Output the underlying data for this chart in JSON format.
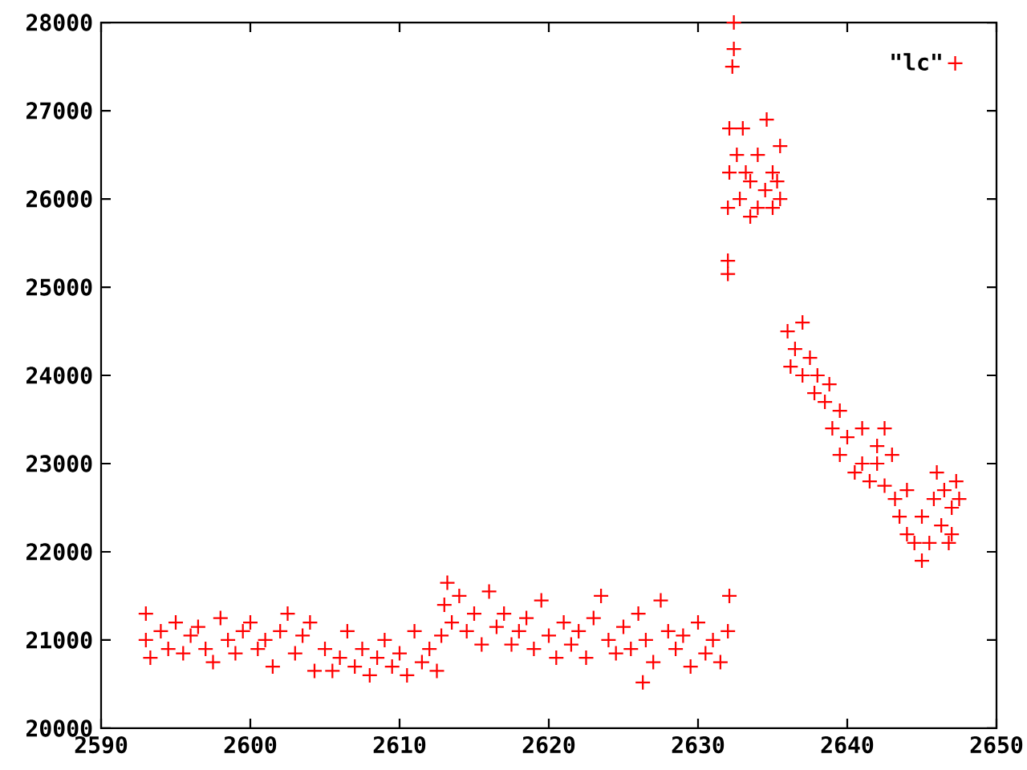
{
  "chart_data": {
    "type": "scatter",
    "xlim": [
      2590,
      2650
    ],
    "ylim": [
      20000,
      28000
    ],
    "xticks": [
      2590,
      2600,
      2610,
      2620,
      2630,
      2640,
      2650
    ],
    "yticks": [
      20000,
      21000,
      22000,
      23000,
      24000,
      25000,
      26000,
      27000,
      28000
    ],
    "marker": "cross",
    "legend": "top right",
    "grid": false,
    "series": [
      {
        "name": "\"lc\"",
        "color": "#ff0000",
        "x": [
          2593.0,
          2593.0,
          2593.3,
          2594,
          2594.5,
          2595,
          2595.5,
          2596,
          2596.5,
          2597,
          2597.5,
          2598,
          2598.5,
          2599,
          2599.5,
          2600,
          2600.5,
          2601,
          2601.5,
          2602,
          2602.5,
          2603,
          2603.5,
          2604,
          2604.3,
          2605,
          2605.5,
          2606,
          2606.5,
          2607,
          2607.5,
          2608,
          2608.5,
          2609,
          2609.5,
          2610,
          2610.5,
          2611,
          2611.5,
          2612,
          2612.5,
          2612.8,
          2613.0,
          2613.2,
          2613.5,
          2614,
          2614.5,
          2615,
          2615.5,
          2616,
          2616.5,
          2617,
          2617.5,
          2618,
          2618.5,
          2619,
          2619.5,
          2620,
          2620.5,
          2621,
          2621.5,
          2622,
          2622.5,
          2623,
          2623.5,
          2624,
          2624.5,
          2625,
          2625.5,
          2626,
          2626.3,
          2626.5,
          2627,
          2627.5,
          2628,
          2628.5,
          2629,
          2629.5,
          2630,
          2630.5,
          2631,
          2631.5,
          2632,
          2632.1,
          2632,
          2632,
          2632,
          2632.1,
          2632.1,
          2632.3,
          2632.4,
          2632.4,
          2632.6,
          2632.8,
          2633,
          2633.2,
          2633.5,
          2633.5,
          2634,
          2634,
          2634.5,
          2634.6,
          2635,
          2635,
          2635.3,
          2635.5,
          2635.5,
          2636,
          2636.2,
          2636.5,
          2637,
          2637,
          2637.5,
          2637.8,
          2638,
          2638.5,
          2638.8,
          2639,
          2639.5,
          2639.5,
          2640,
          2640.5,
          2641,
          2641,
          2641.5,
          2642,
          2642,
          2642.5,
          2642.5,
          2643,
          2643.2,
          2643.5,
          2644,
          2644,
          2644.5,
          2645,
          2645,
          2645.5,
          2645.8,
          2646,
          2646.3,
          2646.5,
          2647,
          2647,
          2647.3,
          2647.5,
          2646.8
        ],
        "values": [
          21000,
          21300,
          20800,
          21100,
          20900,
          21200,
          20850,
          21050,
          21150,
          20900,
          20750,
          21250,
          21000,
          20850,
          21100,
          21200,
          20900,
          21000,
          20700,
          21100,
          21300,
          20850,
          21050,
          21200,
          20650,
          20900,
          20650,
          20800,
          21100,
          20700,
          20900,
          20600,
          20800,
          21000,
          20700,
          20850,
          20600,
          21100,
          20750,
          20900,
          20650,
          21050,
          21400,
          21650,
          21200,
          21500,
          21100,
          21300,
          20950,
          21550,
          21150,
          21300,
          20950,
          21100,
          21250,
          20900,
          21450,
          21050,
          20800,
          21200,
          20950,
          21100,
          20800,
          21250,
          21500,
          21000,
          20850,
          21150,
          20900,
          21300,
          20520,
          21000,
          20750,
          21450,
          21100,
          20900,
          21050,
          20700,
          21200,
          20850,
          21000,
          20750,
          21100,
          21500,
          25150,
          25300,
          25900,
          26300,
          26800,
          27500,
          27700,
          28000,
          26500,
          26000,
          26800,
          26300,
          25800,
          26200,
          26500,
          25900,
          26100,
          26900,
          26300,
          25900,
          26200,
          26600,
          26000,
          24500,
          24100,
          24300,
          24600,
          24000,
          24200,
          23800,
          24000,
          23700,
          23900,
          23400,
          23600,
          23100,
          23300,
          22900,
          23400,
          23000,
          22800,
          23200,
          23000,
          23400,
          22750,
          23100,
          22600,
          22400,
          22200,
          22700,
          22100,
          21900,
          22400,
          22100,
          22600,
          22900,
          22300,
          22700,
          22500,
          22200,
          22800,
          22600,
          22100
        ]
      }
    ]
  }
}
